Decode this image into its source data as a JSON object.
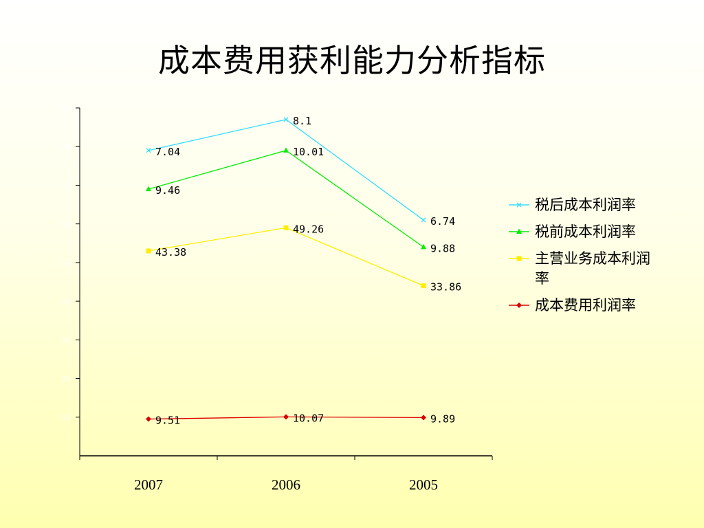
{
  "title": "成本费用获利能力分析指标",
  "chart_data": {
    "type": "line",
    "categories": [
      "2007",
      "2006",
      "2005"
    ],
    "ylim": [
      0,
      90
    ],
    "yticks": [
      10,
      20,
      30,
      40,
      50,
      60,
      70,
      80,
      90
    ],
    "grid": false,
    "legend_position": "right",
    "series": [
      {
        "name": "税后成本利润率",
        "color": "#33ddff",
        "marker": "x",
        "values": [
          79,
          87,
          61
        ],
        "labels": [
          "7.04",
          "8.1",
          "6.74"
        ]
      },
      {
        "name": "税前成本利润率",
        "color": "#00ee00",
        "marker": "triangle",
        "values": [
          69,
          79,
          54
        ],
        "labels": [
          "9.46",
          "10.01",
          "9.88"
        ]
      },
      {
        "name": "主营业务成本利润率",
        "color": "#ffee00",
        "marker": "square",
        "values": [
          53,
          59,
          44
        ],
        "labels": [
          "43.38",
          "49.26",
          "33.86"
        ]
      },
      {
        "name": "成本费用利润率",
        "color": "#dd0000",
        "marker": "diamond",
        "values": [
          9.51,
          10.07,
          9.89
        ],
        "labels": [
          "9.51",
          "10.07",
          "9.89"
        ]
      }
    ]
  }
}
